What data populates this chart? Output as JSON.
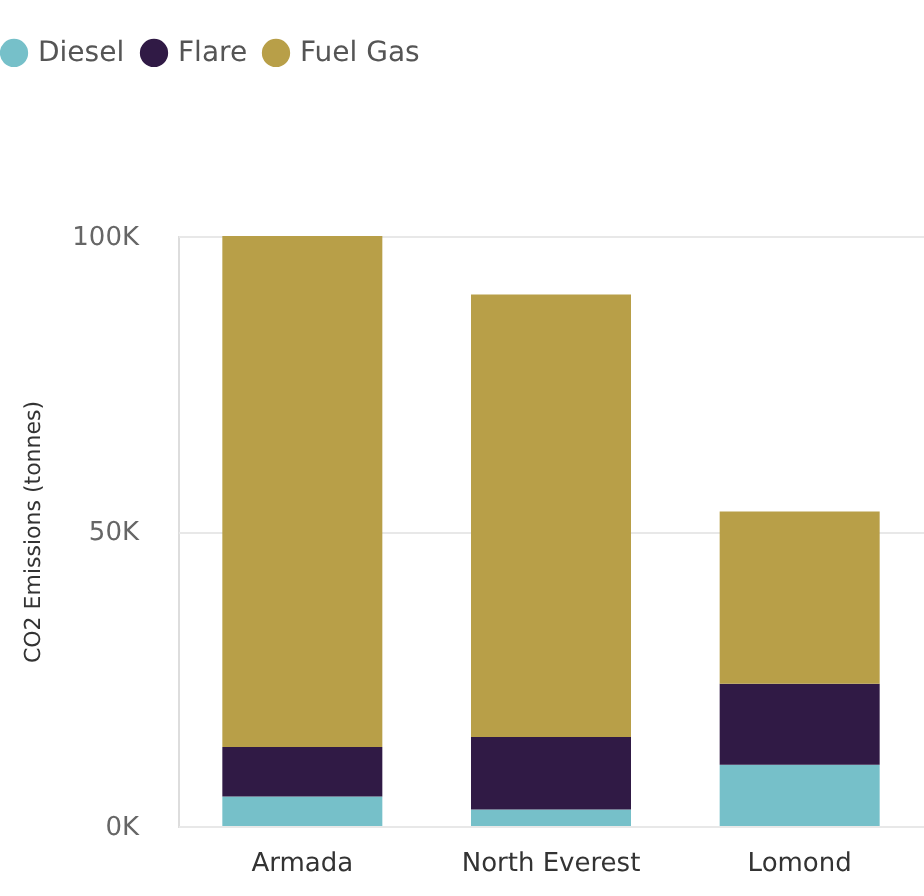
{
  "chart_data": {
    "type": "bar",
    "stacked": true,
    "ylabel": "CO2 Emissions (tonnes)",
    "categories": [
      "Armada",
      "North Everest",
      "Lomond"
    ],
    "series": [
      {
        "name": "Diesel",
        "color": "#76c0c9",
        "values": [
          5000,
          2800,
          10400
        ]
      },
      {
        "name": "Flare",
        "color": "#301a45",
        "values": [
          8400,
          12300,
          13700
        ]
      },
      {
        "name": "Fuel Gas",
        "color": "#b89f48",
        "values": [
          86600,
          75000,
          29200
        ]
      }
    ],
    "ylim": [
      0,
      100000
    ],
    "yticks": [
      {
        "value": 0,
        "label": "0K"
      },
      {
        "value": 50000,
        "label": "50K"
      },
      {
        "value": 100000,
        "label": "100K"
      }
    ],
    "grid": "y",
    "legend": "top left"
  }
}
